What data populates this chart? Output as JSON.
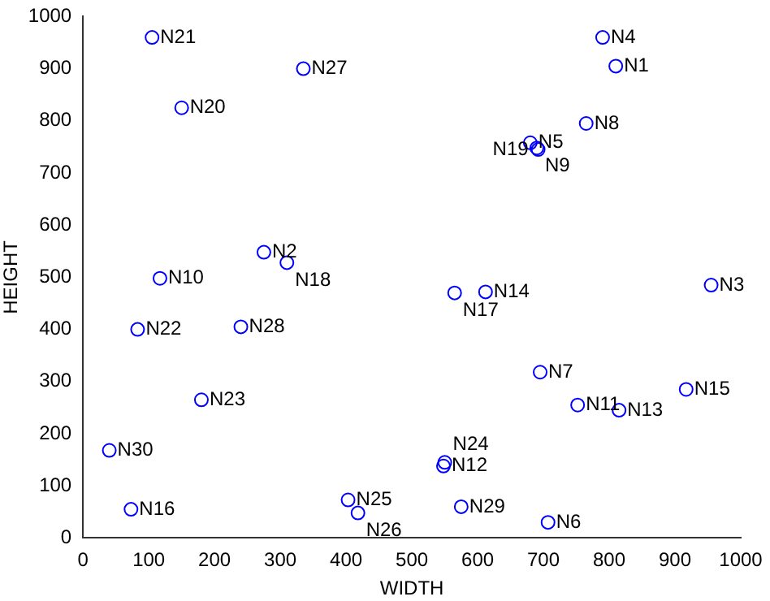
{
  "chart_data": {
    "type": "scatter",
    "xlabel": "WIDTH",
    "ylabel": "HEIGHT",
    "xlim": [
      0,
      1000
    ],
    "ylim": [
      0,
      1000
    ],
    "xticks": [
      0,
      100,
      200,
      300,
      400,
      500,
      600,
      700,
      800,
      900,
      1000
    ],
    "yticks": [
      0,
      100,
      200,
      300,
      400,
      500,
      600,
      700,
      800,
      900,
      1000
    ],
    "grid": false,
    "legend": false,
    "marker": "circle",
    "series": [
      {
        "color": "#0000ff",
        "x": [
          810,
          275,
          955,
          790,
          680,
          707,
          695,
          765,
          690,
          117,
          752,
          548,
          815,
          612,
          917,
          73,
          565,
          310,
          692,
          150,
          105,
          83,
          180,
          550,
          403,
          418,
          335,
          240,
          575,
          40
        ],
        "values": [
          905,
          548,
          485,
          960,
          758,
          30,
          318,
          795,
          748,
          498,
          255,
          138,
          245,
          472,
          285,
          55,
          470,
          528,
          745,
          825,
          960,
          400,
          265,
          145,
          73,
          48,
          900,
          405,
          60,
          168
        ],
        "value_labels": [
          "N1",
          "N2",
          "N3",
          "N4",
          "N5",
          "N6",
          "N7",
          "N8",
          "N9",
          "N10",
          "N11",
          "N12",
          "N13",
          "N14",
          "N15",
          "N16",
          "N17",
          "N18",
          "N19",
          "N20",
          "N21",
          "N22",
          "N23",
          "N24",
          "N25",
          "N26",
          "N27",
          "N28",
          "N29",
          "N30"
        ]
      }
    ]
  }
}
